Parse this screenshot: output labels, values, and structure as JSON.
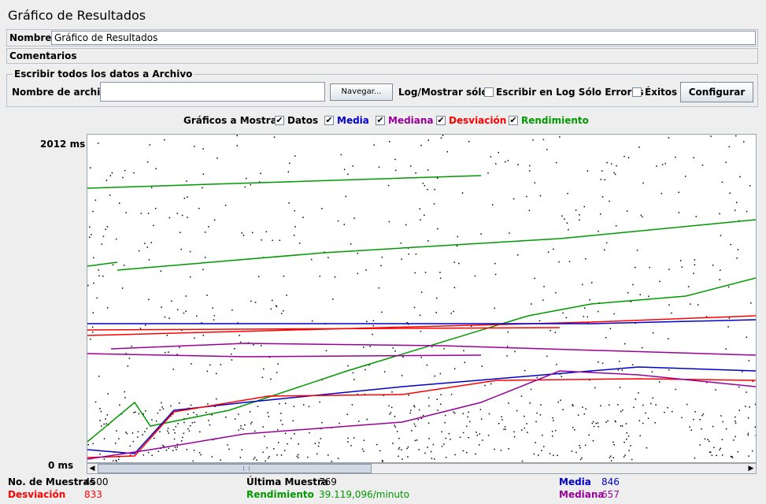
{
  "window": {
    "title": "Gráfico de Resultados"
  },
  "name_field": {
    "label": "Nombre:",
    "value": "Gráfico de Resultados"
  },
  "comments": {
    "label": "Comentarios"
  },
  "file_section": {
    "title": "Escribir todos los datos a Archivo",
    "file_label": "Nombre de archivo",
    "file_value": "",
    "browse_label": "Navegar...",
    "log_show_label": "Log/Mostrar sólo:",
    "errors_label": "Escribir en Log Sólo Errores",
    "errors_checked": false,
    "success_label": "Éxitos",
    "success_checked": false,
    "configure_label": "Configurar"
  },
  "graphs": {
    "label": "Gráficos a Mostrar",
    "items": [
      {
        "label": "Datos",
        "checked": true,
        "color": "#000000"
      },
      {
        "label": "Media",
        "checked": true,
        "color": "#0000cc"
      },
      {
        "label": "Mediana",
        "checked": true,
        "color": "#990099"
      },
      {
        "label": "Desviación",
        "checked": true,
        "color": "#ff0000"
      },
      {
        "label": "Rendimiento",
        "checked": true,
        "color": "#009900"
      }
    ]
  },
  "chart_data": {
    "type": "line",
    "y_max_label": "2012 ms",
    "y_min_label": "0 ms",
    "ylim": [
      0,
      2012
    ],
    "series": [
      {
        "name": "Datos",
        "color": "#000000"
      },
      {
        "name": "Media",
        "color": "#0000cc"
      },
      {
        "name": "Mediana",
        "color": "#990099"
      },
      {
        "name": "Desviación",
        "color": "#ff0000"
      },
      {
        "name": "Rendimiento",
        "color": "#009900"
      }
    ]
  },
  "stats": {
    "samples": {
      "label": "No. de Muestras",
      "value": "4500"
    },
    "last": {
      "label": "Última Muestra",
      "value": "769"
    },
    "average": {
      "label": "Media",
      "value": "846"
    },
    "deviation": {
      "label": "Desviación",
      "value": "833"
    },
    "throughput": {
      "label": "Rendimiento",
      "value": "39.119,096/minuto"
    },
    "median": {
      "label": "Mediana",
      "value": "657"
    }
  }
}
